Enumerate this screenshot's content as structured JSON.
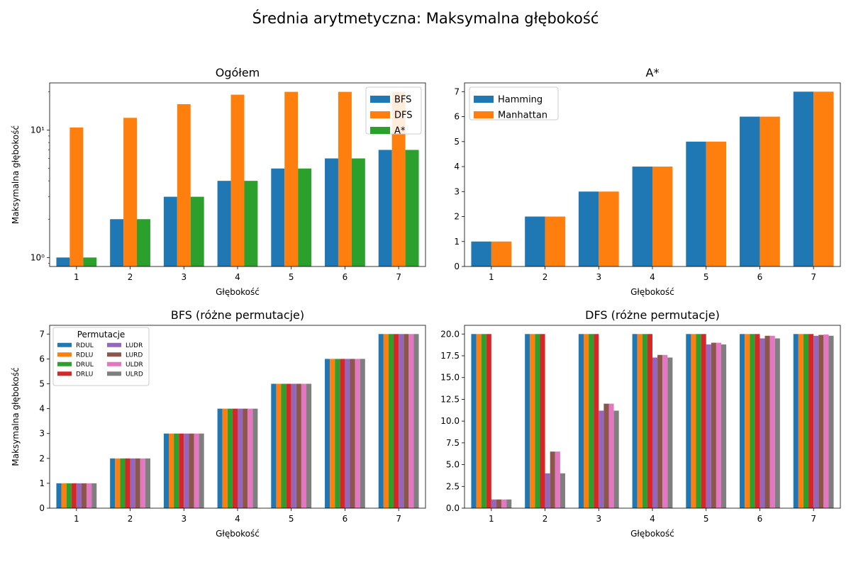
{
  "figure_title": "Średnia arytmetyczna: Maksymalna głębokość",
  "colors": {
    "blue": "#1f77b4",
    "orange": "#ff7f0e",
    "green": "#2ca02c",
    "red": "#d62728",
    "purple": "#9467bd",
    "brown": "#8c564b",
    "pink": "#e377c2",
    "gray": "#7f7f7f"
  },
  "chart_data": [
    {
      "id": "ogolem",
      "type": "bar",
      "title": "Ogółem",
      "xlabel": "Głębokość",
      "ylabel": "Maksymalna głębokość",
      "yscale": "log",
      "ylim": [
        0.85,
        23.5
      ],
      "categories": [
        "1",
        "2",
        "3",
        "4",
        "5",
        "6",
        "7"
      ],
      "y_tick_labels": [
        "10⁰",
        "10¹"
      ],
      "legend_position": "upper right",
      "series": [
        {
          "name": "BFS",
          "color": "#1f77b4",
          "values": [
            1,
            2,
            3,
            4,
            5,
            6,
            7
          ]
        },
        {
          "name": "DFS",
          "color": "#ff7f0e",
          "values": [
            10.5,
            12.5,
            16,
            19,
            20,
            20,
            20
          ]
        },
        {
          "name": "A*",
          "color": "#2ca02c",
          "values": [
            1,
            2,
            3,
            4,
            5,
            6,
            7
          ]
        }
      ]
    },
    {
      "id": "astar",
      "type": "bar",
      "title": "A*",
      "xlabel": "Głębokość",
      "ylabel": "",
      "yscale": "linear",
      "ylim": [
        0,
        7.35
      ],
      "categories": [
        "1",
        "2",
        "3",
        "4",
        "5",
        "6",
        "7"
      ],
      "y_ticks": [
        0,
        1,
        2,
        3,
        4,
        5,
        6,
        7
      ],
      "y_tick_labels": [
        "0",
        "1",
        "2",
        "3",
        "4",
        "5",
        "6",
        "7"
      ],
      "legend_position": "upper left",
      "series": [
        {
          "name": "Hamming",
          "color": "#1f77b4",
          "values": [
            1,
            2,
            3,
            4,
            5,
            6,
            7
          ]
        },
        {
          "name": "Manhattan",
          "color": "#ff7f0e",
          "values": [
            1,
            2,
            3,
            4,
            5,
            6,
            7
          ]
        }
      ]
    },
    {
      "id": "bfs",
      "type": "bar",
      "title": "BFS (różne permutacje)",
      "xlabel": "Głębokość",
      "ylabel": "Maksymalna głębokość",
      "yscale": "linear",
      "ylim": [
        0,
        7.35
      ],
      "categories": [
        "1",
        "2",
        "3",
        "4",
        "5",
        "6",
        "7"
      ],
      "y_ticks": [
        0,
        1,
        2,
        3,
        4,
        5,
        6,
        7
      ],
      "y_tick_labels": [
        "0",
        "1",
        "2",
        "3",
        "4",
        "5",
        "6",
        "7"
      ],
      "legend_position": "upper left",
      "legend_title": "Permutacje",
      "series": [
        {
          "name": "RDUL",
          "color": "#1f77b4",
          "values": [
            1,
            2,
            3,
            4,
            5,
            6,
            7
          ]
        },
        {
          "name": "RDLU",
          "color": "#ff7f0e",
          "values": [
            1,
            2,
            3,
            4,
            5,
            6,
            7
          ]
        },
        {
          "name": "DRUL",
          "color": "#2ca02c",
          "values": [
            1,
            2,
            3,
            4,
            5,
            6,
            7
          ]
        },
        {
          "name": "DRLU",
          "color": "#d62728",
          "values": [
            1,
            2,
            3,
            4,
            5,
            6,
            7
          ]
        },
        {
          "name": "LUDR",
          "color": "#9467bd",
          "values": [
            1,
            2,
            3,
            4,
            5,
            6,
            7
          ]
        },
        {
          "name": "LURD",
          "color": "#8c564b",
          "values": [
            1,
            2,
            3,
            4,
            5,
            6,
            7
          ]
        },
        {
          "name": "ULDR",
          "color": "#e377c2",
          "values": [
            1,
            2,
            3,
            4,
            5,
            6,
            7
          ]
        },
        {
          "name": "ULRD",
          "color": "#7f7f7f",
          "values": [
            1,
            2,
            3,
            4,
            5,
            6,
            7
          ]
        }
      ]
    },
    {
      "id": "dfs",
      "type": "bar",
      "title": "DFS (różne permutacje)",
      "xlabel": "Głębokość",
      "ylabel": "",
      "yscale": "linear",
      "ylim": [
        0,
        21
      ],
      "categories": [
        "1",
        "2",
        "3",
        "4",
        "5",
        "6",
        "7"
      ],
      "y_ticks": [
        0,
        2.5,
        5,
        7.5,
        10,
        12.5,
        15,
        17.5,
        20
      ],
      "y_tick_labels": [
        "0.0",
        "2.5",
        "5.0",
        "7.5",
        "10.0",
        "12.5",
        "15.0",
        "17.5",
        "20.0"
      ],
      "series": [
        {
          "name": "RDUL",
          "color": "#1f77b4",
          "values": [
            20,
            20,
            20,
            20,
            20,
            20,
            20
          ]
        },
        {
          "name": "RDLU",
          "color": "#ff7f0e",
          "values": [
            20,
            20,
            20,
            20,
            20,
            20,
            20
          ]
        },
        {
          "name": "DRUL",
          "color": "#2ca02c",
          "values": [
            20,
            20,
            20,
            20,
            20,
            20,
            20
          ]
        },
        {
          "name": "DRLU",
          "color": "#d62728",
          "values": [
            20,
            20,
            20,
            20,
            20,
            20,
            20
          ]
        },
        {
          "name": "LUDR",
          "color": "#9467bd",
          "values": [
            1,
            4,
            11.2,
            17.3,
            18.8,
            19.5,
            19.8
          ]
        },
        {
          "name": "LURD",
          "color": "#8c564b",
          "values": [
            1,
            6.5,
            12,
            17.6,
            19,
            19.8,
            19.9
          ]
        },
        {
          "name": "ULDR",
          "color": "#e377c2",
          "values": [
            1,
            6.5,
            12,
            17.6,
            19,
            19.8,
            19.95
          ]
        },
        {
          "name": "ULRD",
          "color": "#7f7f7f",
          "values": [
            1,
            4,
            11.2,
            17.3,
            18.8,
            19.5,
            19.8
          ]
        }
      ]
    }
  ]
}
